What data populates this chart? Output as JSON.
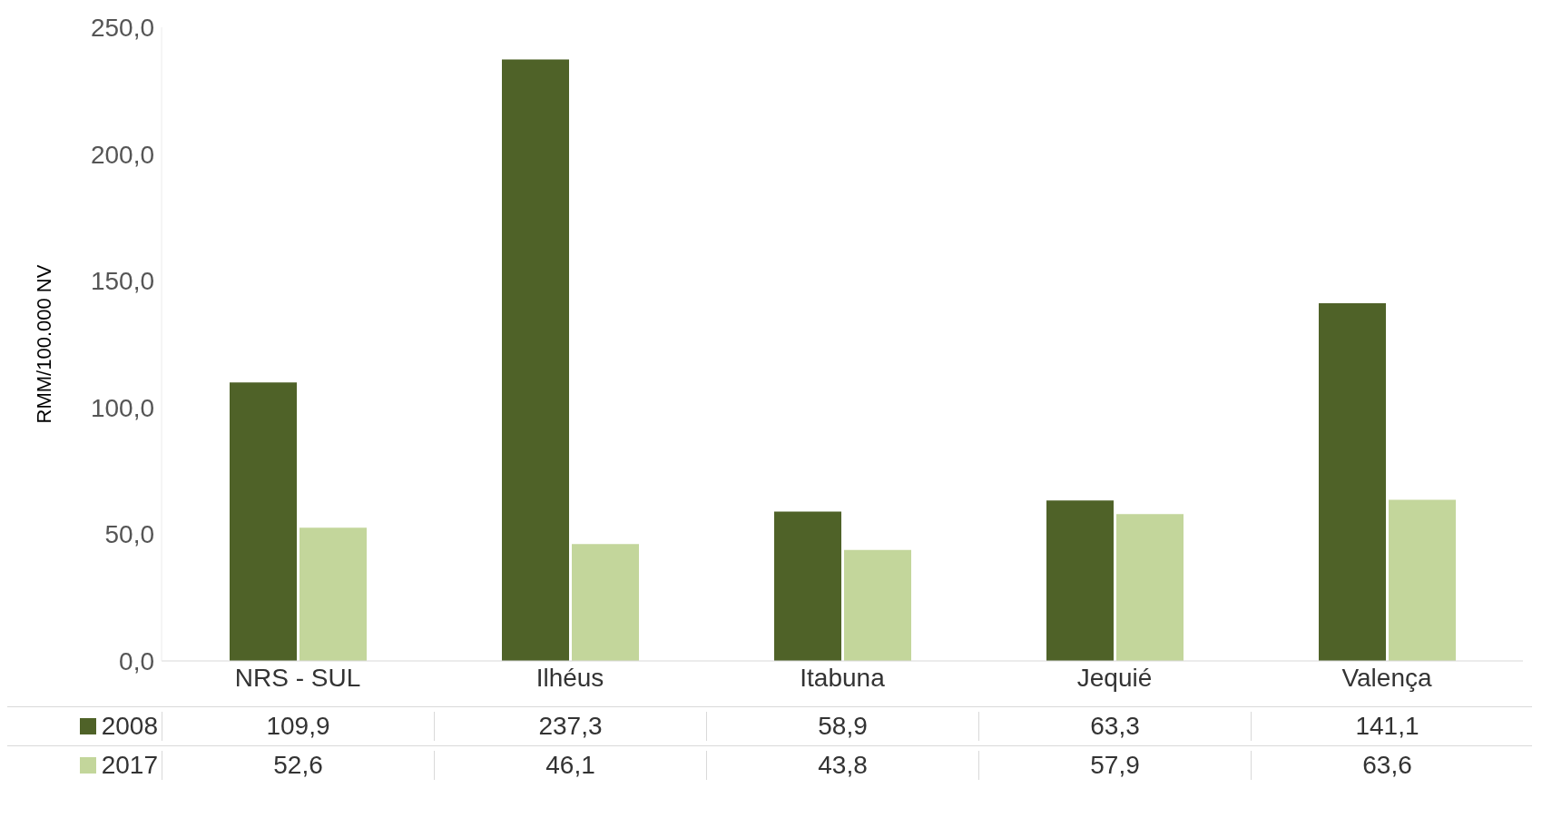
{
  "chart_data": {
    "type": "bar",
    "ylabel": "RMM/100.000 NV",
    "categories": [
      "NRS - SUL",
      "Ilhéus",
      "Itabuna",
      "Jequié",
      "Valença"
    ],
    "series": [
      {
        "name": "2008",
        "color": "#4f6228",
        "values": [
          109.9,
          237.3,
          58.9,
          63.3,
          141.1
        ],
        "value_labels": [
          "109,9",
          "237,3",
          "58,9",
          "63,3",
          "141,1"
        ]
      },
      {
        "name": "2017",
        "color": "#c3d69b",
        "values": [
          52.6,
          46.1,
          43.8,
          57.9,
          63.6
        ],
        "value_labels": [
          "52,6",
          "46,1",
          "43,8",
          "57,9",
          "63,6"
        ]
      }
    ],
    "ylim": [
      0,
      250
    ],
    "yticks": [
      {
        "value": 0,
        "label": "0,0"
      },
      {
        "value": 50,
        "label": "50,0"
      },
      {
        "value": 100,
        "label": "100,0"
      },
      {
        "value": 150,
        "label": "150,0"
      },
      {
        "value": 200,
        "label": "200,0"
      },
      {
        "value": 250,
        "label": "250,0"
      }
    ],
    "grid": false,
    "legend": "bottom"
  }
}
